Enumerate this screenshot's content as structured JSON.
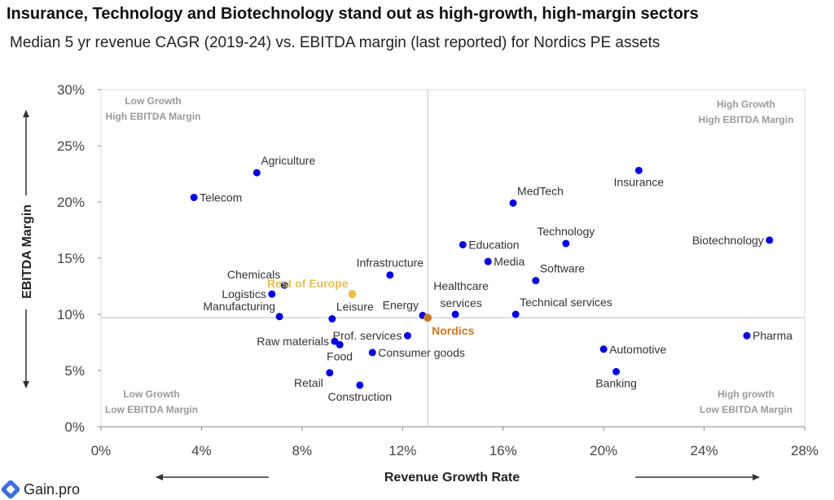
{
  "title": "Insurance, Technology and Biotechnology stand out as high-growth, high-margin sectors",
  "subtitle": "Median 5 yr revenue CAGR (2019-24) vs. EBITDA margin (last reported) for Nordics PE assets",
  "brand": "Gain.pro",
  "colors": {
    "points": "#0000e0",
    "rest_of_europe": "#e8c050",
    "nordics": "#c77a26",
    "quadrant_text": "#9a9a9a",
    "grid": "#cccccc"
  },
  "chart_data": {
    "type": "scatter",
    "xlabel": "Revenue Growth Rate",
    "ylabel": "EBITDA Margin",
    "xlim": [
      0,
      28
    ],
    "ylim": [
      0,
      30
    ],
    "xticks": [
      0,
      4,
      8,
      12,
      16,
      20,
      24,
      28
    ],
    "yticks": [
      0,
      5,
      10,
      15,
      20,
      25,
      30
    ],
    "xtick_labels": [
      "0%",
      "4%",
      "8%",
      "12%",
      "16%",
      "20%",
      "24%",
      "28%"
    ],
    "ytick_labels": [
      "0%",
      "5%",
      "10%",
      "15%",
      "20%",
      "25%",
      "30%"
    ],
    "reference_lines": {
      "x": 13.0,
      "y": 9.7
    },
    "quadrants": {
      "top_left": [
        "Low Growth",
        "High EBITDA Margin"
      ],
      "top_right": [
        "High Growth",
        "High EBITDA Margin"
      ],
      "bottom_left": [
        "Low Growth",
        "Low EBITDA Margin"
      ],
      "bottom_right": [
        "High growth",
        "Low EBITDA Margin"
      ]
    },
    "points": [
      {
        "label": "Telecom",
        "x": 3.7,
        "y": 20.4,
        "pos": "right"
      },
      {
        "label": "Agriculture",
        "x": 6.2,
        "y": 22.6,
        "pos": "above-right"
      },
      {
        "label": "Chemicals",
        "x": 7.3,
        "y": 12.6,
        "pos": "above-left"
      },
      {
        "label": "Logistics",
        "x": 6.8,
        "y": 11.8,
        "pos": "left"
      },
      {
        "label": "Manufacturing",
        "x": 7.1,
        "y": 9.8,
        "pos": "above-left"
      },
      {
        "label": "Leisure",
        "x": 9.2,
        "y": 9.6,
        "pos": "above-right"
      },
      {
        "label": "Raw materials",
        "x": 9.3,
        "y": 7.6,
        "pos": "left"
      },
      {
        "label": "Food",
        "x": 9.5,
        "y": 7.3,
        "pos": "below"
      },
      {
        "label": "Retail",
        "x": 9.1,
        "y": 4.8,
        "pos": "below-left"
      },
      {
        "label": "Construction",
        "x": 10.3,
        "y": 3.7,
        "pos": "below"
      },
      {
        "label": "Prof. services",
        "x": 12.2,
        "y": 8.1,
        "pos": "left"
      },
      {
        "label": "Consumer goods",
        "x": 10.8,
        "y": 6.6,
        "pos": "right"
      },
      {
        "label": "Infrastructure",
        "x": 11.5,
        "y": 13.5,
        "pos": "above"
      },
      {
        "label": "Energy",
        "x": 12.8,
        "y": 9.9,
        "pos": "above-left"
      },
      {
        "label": "Healthcare services",
        "x": 14.1,
        "y": 10.0,
        "pos": "above-multi"
      },
      {
        "label": "Education",
        "x": 14.4,
        "y": 16.2,
        "pos": "right"
      },
      {
        "label": "Media",
        "x": 15.4,
        "y": 14.7,
        "pos": "right"
      },
      {
        "label": "MedTech",
        "x": 16.4,
        "y": 19.9,
        "pos": "above-right"
      },
      {
        "label": "Technical services",
        "x": 16.5,
        "y": 10.0,
        "pos": "above-right"
      },
      {
        "label": "Software",
        "x": 17.3,
        "y": 13.0,
        "pos": "above-right"
      },
      {
        "label": "Technology",
        "x": 18.5,
        "y": 16.3,
        "pos": "above"
      },
      {
        "label": "Insurance",
        "x": 21.4,
        "y": 22.8,
        "pos": "below"
      },
      {
        "label": "Automotive",
        "x": 20.0,
        "y": 6.9,
        "pos": "right"
      },
      {
        "label": "Banking",
        "x": 20.5,
        "y": 4.9,
        "pos": "below"
      },
      {
        "label": "Biotechnology",
        "x": 26.6,
        "y": 16.6,
        "pos": "left"
      },
      {
        "label": "Pharma",
        "x": 25.7,
        "y": 8.1,
        "pos": "right"
      }
    ],
    "highlights": [
      {
        "label": "Rest of Europe",
        "x": 10.0,
        "y": 11.8,
        "pos": "above-left",
        "color_key": "rest_of_europe"
      },
      {
        "label": "Nordics",
        "x": 13.0,
        "y": 9.7,
        "pos": "below-right",
        "color_key": "nordics"
      }
    ]
  }
}
